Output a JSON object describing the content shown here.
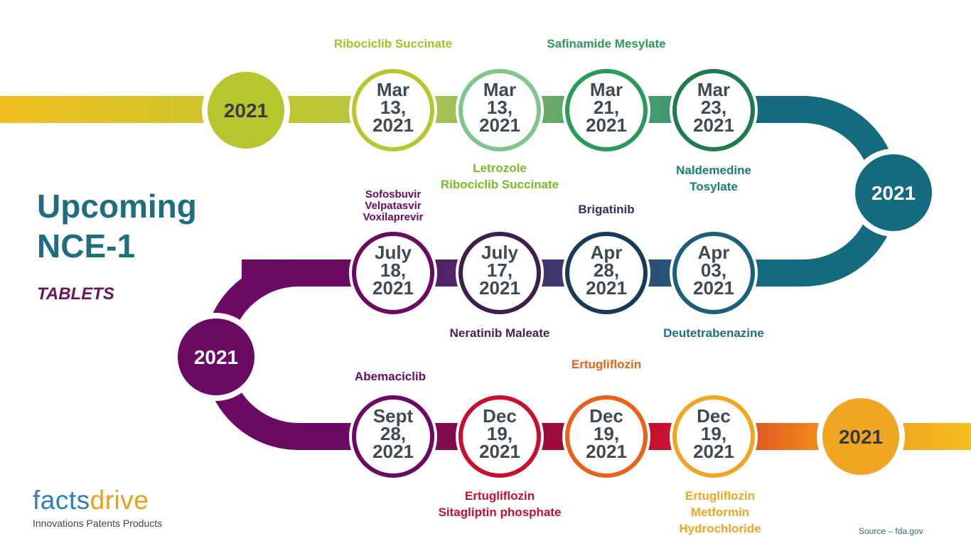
{
  "heading": "Upcoming\nNCE-1",
  "subheading": "TABLETS",
  "logo": {
    "part1": "facts",
    "part2": "drive",
    "tagline": "Innovations Patents Products"
  },
  "source": "Source – fda.gov",
  "colors": {
    "row1": [
      "#b6c62f",
      "#7fc58e",
      "#2a9b57",
      "#1f7a4c"
    ],
    "row2": [
      "#6b0a62",
      "#3e1f4a",
      "#173a55",
      "#1e5e7d"
    ],
    "row3": [
      "#6b0a62",
      "#c8102e",
      "#e8621b",
      "#f0a623"
    ],
    "year_start": "#b6c62f",
    "year_right": "#136b7d",
    "year_left": "#6b0a62",
    "year_end": "#f0a623"
  },
  "year_circles": [
    {
      "label": "2021",
      "name": "year-start"
    },
    {
      "label": "2021",
      "name": "year-right"
    },
    {
      "label": "2021",
      "name": "year-left"
    },
    {
      "label": "2021",
      "name": "year-end"
    }
  ],
  "date_circles": [
    {
      "text": "Mar\n13,\n2021",
      "row": 1
    },
    {
      "text": "Mar\n13,\n2021",
      "row": 1
    },
    {
      "text": "Mar\n21,\n2021",
      "row": 1
    },
    {
      "text": "Mar\n23,\n2021",
      "row": 1
    },
    {
      "text": "July\n18,\n2021",
      "row": 2
    },
    {
      "text": "July\n17,\n2021",
      "row": 2
    },
    {
      "text": "Apr\n28,\n2021",
      "row": 2
    },
    {
      "text": "Apr\n03,\n2021",
      "row": 2
    },
    {
      "text": "Sept\n28,\n2021",
      "row": 3
    },
    {
      "text": "Dec\n19,\n2021",
      "row": 3
    },
    {
      "text": "Dec\n19,\n2021",
      "row": 3
    },
    {
      "text": "Dec\n19,\n2021",
      "row": 3
    }
  ],
  "drug_labels": [
    {
      "text": "Ribociclib Succinate",
      "color": "#a9be2a"
    },
    {
      "text": "Letrozole\nRibociclib Succinate",
      "color": "#7ab929"
    },
    {
      "text": "Safinamide Mesylate",
      "color": "#2a9b57"
    },
    {
      "text": "Naldemedine\nTosylate",
      "color": "#1a7d6e"
    },
    {
      "text": "Sofosbuvir\nVelpatasvir\nVoxilaprevir",
      "color": "#6b0a62"
    },
    {
      "text": "Neratinib Maleate",
      "color": "#4a1f5a"
    },
    {
      "text": "Brigatinib",
      "color": "#3d2a6b"
    },
    {
      "text": "Deutetrabenazine",
      "color": "#1f6e8a"
    },
    {
      "text": "Abemaciclib",
      "color": "#6b0a62"
    },
    {
      "text": "Ertugliflozin\nSitagliptin phosphate",
      "color": "#c8102e"
    },
    {
      "text": "Ertugliflozin",
      "color": "#e8621b"
    },
    {
      "text": "Ertugliflozin\nMetformin\nHydrochloride",
      "color": "#f0a623"
    }
  ]
}
